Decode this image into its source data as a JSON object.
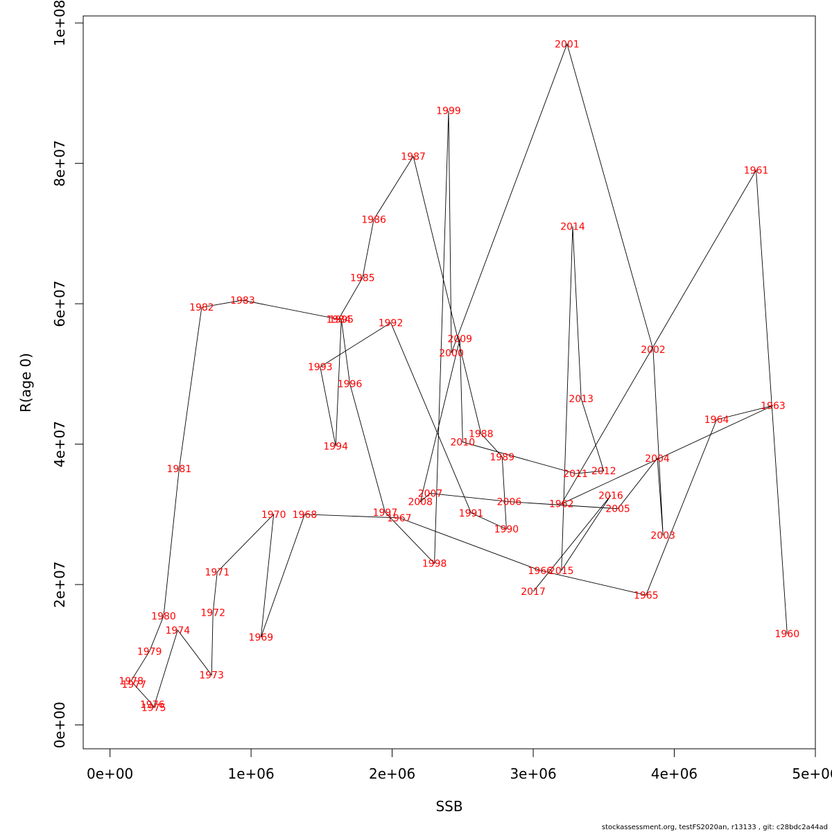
{
  "chart_data": {
    "type": "line",
    "xlabel": "SSB",
    "ylabel": "R(age 0)",
    "xlim": [
      -190000,
      5000000
    ],
    "ylim": [
      -3400000,
      101000000
    ],
    "x_ticks": [
      {
        "value": 0,
        "label": "0e+00"
      },
      {
        "value": 1000000,
        "label": "1e+06"
      },
      {
        "value": 2000000,
        "label": "2e+06"
      },
      {
        "value": 3000000,
        "label": "3e+06"
      },
      {
        "value": 4000000,
        "label": "4e+06"
      },
      {
        "value": 5000000,
        "label": "5e+06"
      }
    ],
    "y_ticks": [
      {
        "value": 0,
        "label": "0e+00"
      },
      {
        "value": 20000000,
        "label": "2e+07"
      },
      {
        "value": 40000000,
        "label": "4e+07"
      },
      {
        "value": 60000000,
        "label": "6e+07"
      },
      {
        "value": 80000000,
        "label": "8e+07"
      },
      {
        "value": 100000000,
        "label": "1e+08"
      }
    ],
    "points": [
      {
        "year": "1960",
        "x": 4800000,
        "y": 13000000
      },
      {
        "year": "1961",
        "x": 4580000,
        "y": 79000000
      },
      {
        "year": "1962",
        "x": 3200000,
        "y": 31500000
      },
      {
        "year": "1963",
        "x": 4700000,
        "y": 45500000
      },
      {
        "year": "1964",
        "x": 4300000,
        "y": 43500000
      },
      {
        "year": "1965",
        "x": 3800000,
        "y": 18500000
      },
      {
        "year": "1966",
        "x": 3050000,
        "y": 22000000
      },
      {
        "year": "1967",
        "x": 2050000,
        "y": 29500000
      },
      {
        "year": "1968",
        "x": 1380000,
        "y": 30000000
      },
      {
        "year": "1969",
        "x": 1070000,
        "y": 12500000
      },
      {
        "year": "1970",
        "x": 1160000,
        "y": 30000000
      },
      {
        "year": "1971",
        "x": 760000,
        "y": 21800000
      },
      {
        "year": "1972",
        "x": 730000,
        "y": 16000000
      },
      {
        "year": "1973",
        "x": 720000,
        "y": 7100000
      },
      {
        "year": "1974",
        "x": 480000,
        "y": 13500000
      },
      {
        "year": "1975",
        "x": 310000,
        "y": 2500000
      },
      {
        "year": "1976",
        "x": 300000,
        "y": 2900000
      },
      {
        "year": "1977",
        "x": 170000,
        "y": 5800000
      },
      {
        "year": "1978",
        "x": 150000,
        "y": 6300000
      },
      {
        "year": "1979",
        "x": 280000,
        "y": 10500000
      },
      {
        "year": "1980",
        "x": 380000,
        "y": 15500000
      },
      {
        "year": "1981",
        "x": 490000,
        "y": 36500000
      },
      {
        "year": "1982",
        "x": 650000,
        "y": 59500000
      },
      {
        "year": "1983",
        "x": 940000,
        "y": 60500000
      },
      {
        "year": "1984",
        "x": 1620000,
        "y": 57800000
      },
      {
        "year": "1985",
        "x": 1790000,
        "y": 63700000
      },
      {
        "year": "1986",
        "x": 1870000,
        "y": 72000000
      },
      {
        "year": "1987",
        "x": 2150000,
        "y": 81000000
      },
      {
        "year": "1988",
        "x": 2630000,
        "y": 41500000
      },
      {
        "year": "1989",
        "x": 2780000,
        "y": 38200000
      },
      {
        "year": "1990",
        "x": 2810000,
        "y": 27900000
      },
      {
        "year": "1991",
        "x": 2560000,
        "y": 30200000
      },
      {
        "year": "1992",
        "x": 1990000,
        "y": 57300000
      },
      {
        "year": "1993",
        "x": 1490000,
        "y": 51000000
      },
      {
        "year": "1994",
        "x": 1600000,
        "y": 39700000
      },
      {
        "year": "1995",
        "x": 1640000,
        "y": 57800000
      },
      {
        "year": "1996",
        "x": 1700000,
        "y": 48600000
      },
      {
        "year": "1997",
        "x": 1950000,
        "y": 30300000
      },
      {
        "year": "1998",
        "x": 2300000,
        "y": 23000000
      },
      {
        "year": "1999",
        "x": 2400000,
        "y": 87500000
      },
      {
        "year": "2000",
        "x": 2420000,
        "y": 53000000
      },
      {
        "year": "2001",
        "x": 3240000,
        "y": 97000000
      },
      {
        "year": "2002",
        "x": 3850000,
        "y": 53500000
      },
      {
        "year": "2003",
        "x": 3920000,
        "y": 27000000
      },
      {
        "year": "2004",
        "x": 3880000,
        "y": 38000000
      },
      {
        "year": "2005",
        "x": 3600000,
        "y": 30800000
      },
      {
        "year": "2006",
        "x": 2830000,
        "y": 31800000
      },
      {
        "year": "2007",
        "x": 2270000,
        "y": 33000000
      },
      {
        "year": "2008",
        "x": 2200000,
        "y": 31800000
      },
      {
        "year": "2009",
        "x": 2480000,
        "y": 55000000
      },
      {
        "year": "2010",
        "x": 2500000,
        "y": 40300000
      },
      {
        "year": "2011",
        "x": 3300000,
        "y": 35800000
      },
      {
        "year": "2012",
        "x": 3500000,
        "y": 36200000
      },
      {
        "year": "2013",
        "x": 3340000,
        "y": 46500000
      },
      {
        "year": "2014",
        "x": 3280000,
        "y": 71000000
      },
      {
        "year": "2015",
        "x": 3200000,
        "y": 22000000
      },
      {
        "year": "2016",
        "x": 3550000,
        "y": 32700000
      },
      {
        "year": "2017",
        "x": 3000000,
        "y": 19000000
      }
    ]
  },
  "footer": {
    "text": "stockassessment.org, testFS2020an, r13133 , git: c28bdc2a44ad"
  }
}
